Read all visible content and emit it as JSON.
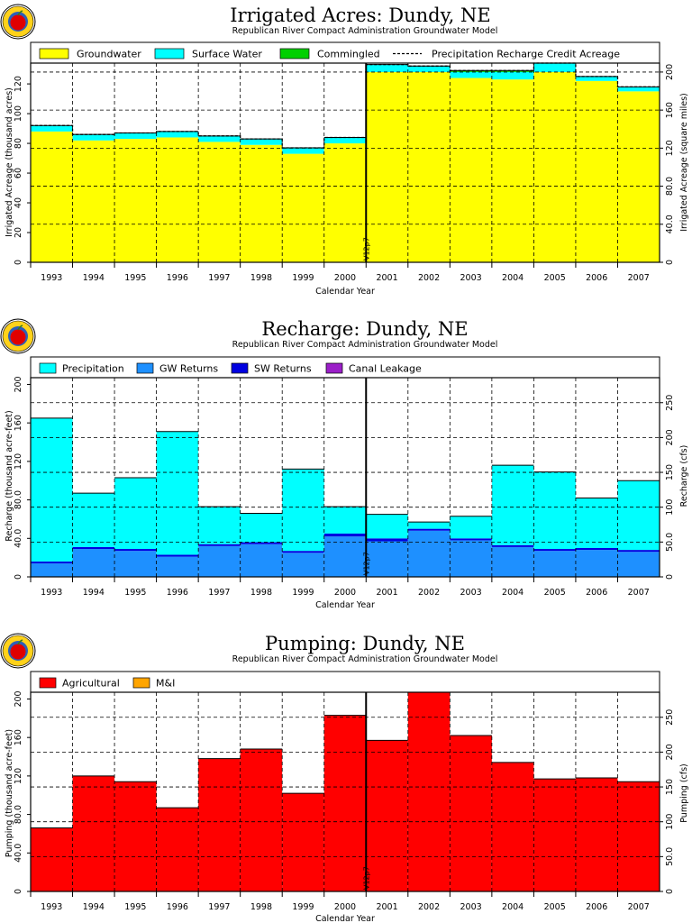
{
  "logo": {
    "name": "apple-seal-logo"
  },
  "colors": {
    "groundwater": "#ffff00",
    "surface_water": "#00ffff",
    "commingled": "#00d000",
    "precipitation": "#00ffff",
    "gw_returns": "#1e90ff",
    "sw_returns": "#0000e0",
    "canal_leakage": "#9b1fc8",
    "agricultural": "#ff0000",
    "mi": "#ffa500",
    "axis": "#000000",
    "grid": "#000000"
  },
  "chart_data": [
    {
      "type": "bar",
      "title": "Irrigated Acres: Dundy, NE",
      "subtitle": "Republican River Compact Administration Groundwater Model",
      "xlabel": "Calendar Year",
      "ylabel": "Irrigated Acreage (thousand acres)",
      "ylabel_right": "Irrigated Acreage (square miles)",
      "categories": [
        "1993",
        "1994",
        "1995",
        "1996",
        "1997",
        "1998",
        "1999",
        "2000",
        "2001",
        "2002",
        "2003",
        "2004",
        "2005",
        "2006",
        "2007"
      ],
      "series": [
        {
          "name": "Groundwater",
          "color_key": "groundwater",
          "values": [
            88,
            82,
            83,
            84,
            81,
            79,
            73,
            80,
            128,
            128,
            124,
            123,
            128,
            122,
            115
          ]
        },
        {
          "name": "Surface Water",
          "color_key": "surface_water",
          "values": [
            4,
            4,
            4,
            4,
            4,
            4,
            4,
            4,
            5,
            4,
            4,
            5,
            6,
            3,
            3
          ]
        },
        {
          "name": "Commingled",
          "color_key": "commingled",
          "values": [
            0,
            0,
            0,
            0,
            0,
            0,
            0,
            0,
            0,
            0,
            1,
            1,
            0,
            0,
            0
          ]
        }
      ],
      "line_series": {
        "name": "Precipitation Recharge Credit Acreage",
        "style": "dashed",
        "values": [
          92,
          86,
          87,
          88,
          85,
          83,
          77,
          84,
          133,
          132,
          129,
          129,
          134,
          125,
          118
        ]
      },
      "ylim": [
        0,
        134
      ],
      "yticks": [
        0,
        20,
        40,
        60,
        80,
        100,
        120
      ],
      "ytick_labels": [
        "0",
        "20",
        "40",
        "60",
        "80",
        "100",
        "120"
      ],
      "ylim_right": [
        0,
        209.4
      ],
      "yticks_right": [
        0,
        40,
        80,
        120,
        160,
        200
      ],
      "ytick_labels_right": [
        "0",
        "40.0",
        "80.0",
        "120",
        "160",
        "200"
      ],
      "vline_label": "V12p7",
      "grid": true,
      "legend": "top"
    },
    {
      "type": "bar",
      "title": "Recharge: Dundy, NE",
      "subtitle": "Republican River Compact Administration Groundwater Model",
      "xlabel": "Calendar Year",
      "ylabel": "Recharge (thousand acre-feet)",
      "ylabel_right": "Recharge (cfs)",
      "categories": [
        "1993",
        "1994",
        "1995",
        "1996",
        "1997",
        "1998",
        "1999",
        "2000",
        "2001",
        "2002",
        "2003",
        "2004",
        "2005",
        "2006",
        "2007"
      ],
      "series": [
        {
          "name": "GW Returns",
          "color_key": "gw_returns",
          "values": [
            14,
            29,
            27,
            21,
            32,
            34,
            25,
            42,
            37,
            48,
            38,
            31,
            27,
            28,
            26
          ]
        },
        {
          "name": "SW Returns",
          "color_key": "sw_returns",
          "values": [
            2,
            2,
            2,
            2,
            2,
            2,
            2,
            3,
            3,
            2,
            2,
            2,
            2,
            2,
            2
          ]
        },
        {
          "name": "Canal Leakage",
          "color_key": "canal_leakage",
          "values": [
            0,
            0,
            0,
            0,
            0,
            0,
            0,
            0,
            0,
            0,
            0,
            0,
            0,
            0,
            0
          ]
        },
        {
          "name": "Precipitation",
          "color_key": "precipitation",
          "values": [
            149,
            56,
            74,
            128,
            39,
            30,
            85,
            28,
            25,
            7,
            23,
            83,
            80,
            52,
            72
          ]
        }
      ],
      "ylim": [
        0,
        207
      ],
      "yticks": [
        0,
        40,
        80,
        120,
        160,
        200
      ],
      "ytick_labels": [
        "0",
        "40.0",
        "80.0",
        "120",
        "160",
        "200"
      ],
      "ylim_right": [
        0,
        285.9
      ],
      "yticks_right": [
        0,
        50,
        100,
        150,
        200,
        250
      ],
      "ytick_labels_right": [
        "0",
        "50.0",
        "100",
        "150",
        "200",
        "250"
      ],
      "vline_label": "V12p7",
      "grid": true,
      "legend": "top"
    },
    {
      "type": "bar",
      "title": "Pumping: Dundy, NE",
      "subtitle": "Republican River Compact Administration Groundwater Model",
      "xlabel": "Calendar Year",
      "ylabel": "Pumping (thousand acre-feet)",
      "ylabel_right": "Pumping (cfs)",
      "categories": [
        "1993",
        "1994",
        "1995",
        "1996",
        "1997",
        "1998",
        "1999",
        "2000",
        "2001",
        "2002",
        "2003",
        "2004",
        "2005",
        "2006",
        "2007"
      ],
      "series": [
        {
          "name": "Agricultural",
          "color_key": "agricultural",
          "values": [
            66,
            120,
            114,
            87,
            138,
            148,
            102,
            183,
            157,
            207,
            162,
            134,
            117,
            118,
            114
          ]
        },
        {
          "name": "M&I",
          "color_key": "mi",
          "values": [
            0,
            0,
            0,
            0,
            0,
            0,
            0,
            0,
            0,
            0,
            0,
            0,
            0,
            0,
            0
          ]
        }
      ],
      "ylim": [
        0,
        207
      ],
      "yticks": [
        0,
        40,
        80,
        120,
        160,
        200
      ],
      "ytick_labels": [
        "0",
        "40.0",
        "80.0",
        "120",
        "160",
        "200"
      ],
      "ylim_right": [
        0,
        285.9
      ],
      "yticks_right": [
        0,
        50,
        100,
        150,
        200,
        250
      ],
      "ytick_labels_right": [
        "0",
        "50.0",
        "100",
        "150",
        "200",
        "250"
      ],
      "vline_label": "V12p7",
      "grid": true,
      "legend": "top"
    }
  ]
}
